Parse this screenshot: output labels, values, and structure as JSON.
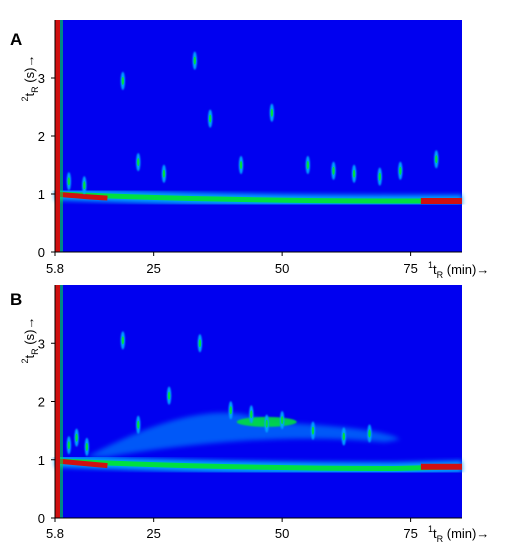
{
  "chart_data": [
    {
      "type": "heatmap",
      "panel_label": "A",
      "xlabel_sup": "1",
      "xlabel_base": "t",
      "xlabel_sub": "R",
      "xlabel_unit": " (min)",
      "ylabel_sup": "2",
      "ylabel_base": "t",
      "ylabel_sub": "R",
      "ylabel_unit": " (s)",
      "arrow": "→",
      "xlim": [
        5.8,
        85
      ],
      "ylim": [
        0,
        4
      ],
      "x_ticks": [
        "5.8",
        "25",
        "50",
        "75"
      ],
      "y_ticks": [
        "0",
        "1",
        "2",
        "3"
      ],
      "colors": {
        "background": "#0000f0",
        "low": "#00a0ff",
        "mid": "#00e040",
        "high": "#d01010"
      },
      "baseline_band": {
        "y_start": 1.0,
        "y_mid": 0.88,
        "y_end": 0.88
      },
      "peaks": [
        {
          "x": 8.5,
          "y": 1.22
        },
        {
          "x": 11.5,
          "y": 1.15
        },
        {
          "x": 19,
          "y": 2.95
        },
        {
          "x": 22,
          "y": 1.55
        },
        {
          "x": 27,
          "y": 1.35
        },
        {
          "x": 33,
          "y": 3.3
        },
        {
          "x": 36,
          "y": 2.3
        },
        {
          "x": 42,
          "y": 1.5
        },
        {
          "x": 48,
          "y": 2.4
        },
        {
          "x": 55,
          "y": 1.5
        },
        {
          "x": 60,
          "y": 1.4
        },
        {
          "x": 64,
          "y": 1.35
        },
        {
          "x": 69,
          "y": 1.3
        },
        {
          "x": 73,
          "y": 1.4
        },
        {
          "x": 80,
          "y": 1.6
        }
      ]
    },
    {
      "type": "heatmap",
      "panel_label": "B",
      "xlabel_sup": "1",
      "xlabel_base": "t",
      "xlabel_sub": "R",
      "xlabel_unit": " (min)",
      "ylabel_sup": "2",
      "ylabel_base": "t",
      "ylabel_sub": "R",
      "ylabel_unit": " (s)",
      "arrow": "→",
      "xlim": [
        5.8,
        85
      ],
      "ylim": [
        0,
        4
      ],
      "x_ticks": [
        "5.8",
        "25",
        "50",
        "75"
      ],
      "y_ticks": [
        "0",
        "1",
        "2",
        "3"
      ],
      "colors": {
        "background": "#0000f0",
        "low": "#00a0ff",
        "mid": "#00e040",
        "high": "#d01010"
      },
      "baseline_band": {
        "y_start": 0.98,
        "y_mid": 0.85,
        "y_end": 0.88
      },
      "hump": {
        "x_start": 12,
        "x_peak": 47,
        "x_end": 70,
        "y_peak": 1.65
      },
      "peaks": [
        {
          "x": 8.5,
          "y": 1.25
        },
        {
          "x": 10,
          "y": 1.38
        },
        {
          "x": 12,
          "y": 1.22
        },
        {
          "x": 19,
          "y": 3.05
        },
        {
          "x": 22,
          "y": 1.6
        },
        {
          "x": 28,
          "y": 2.1
        },
        {
          "x": 34,
          "y": 3.0
        },
        {
          "x": 40,
          "y": 1.85
        },
        {
          "x": 44,
          "y": 1.78
        },
        {
          "x": 47,
          "y": 1.62
        },
        {
          "x": 50,
          "y": 1.68
        },
        {
          "x": 56,
          "y": 1.5
        },
        {
          "x": 62,
          "y": 1.4
        },
        {
          "x": 67,
          "y": 1.45
        }
      ]
    }
  ]
}
